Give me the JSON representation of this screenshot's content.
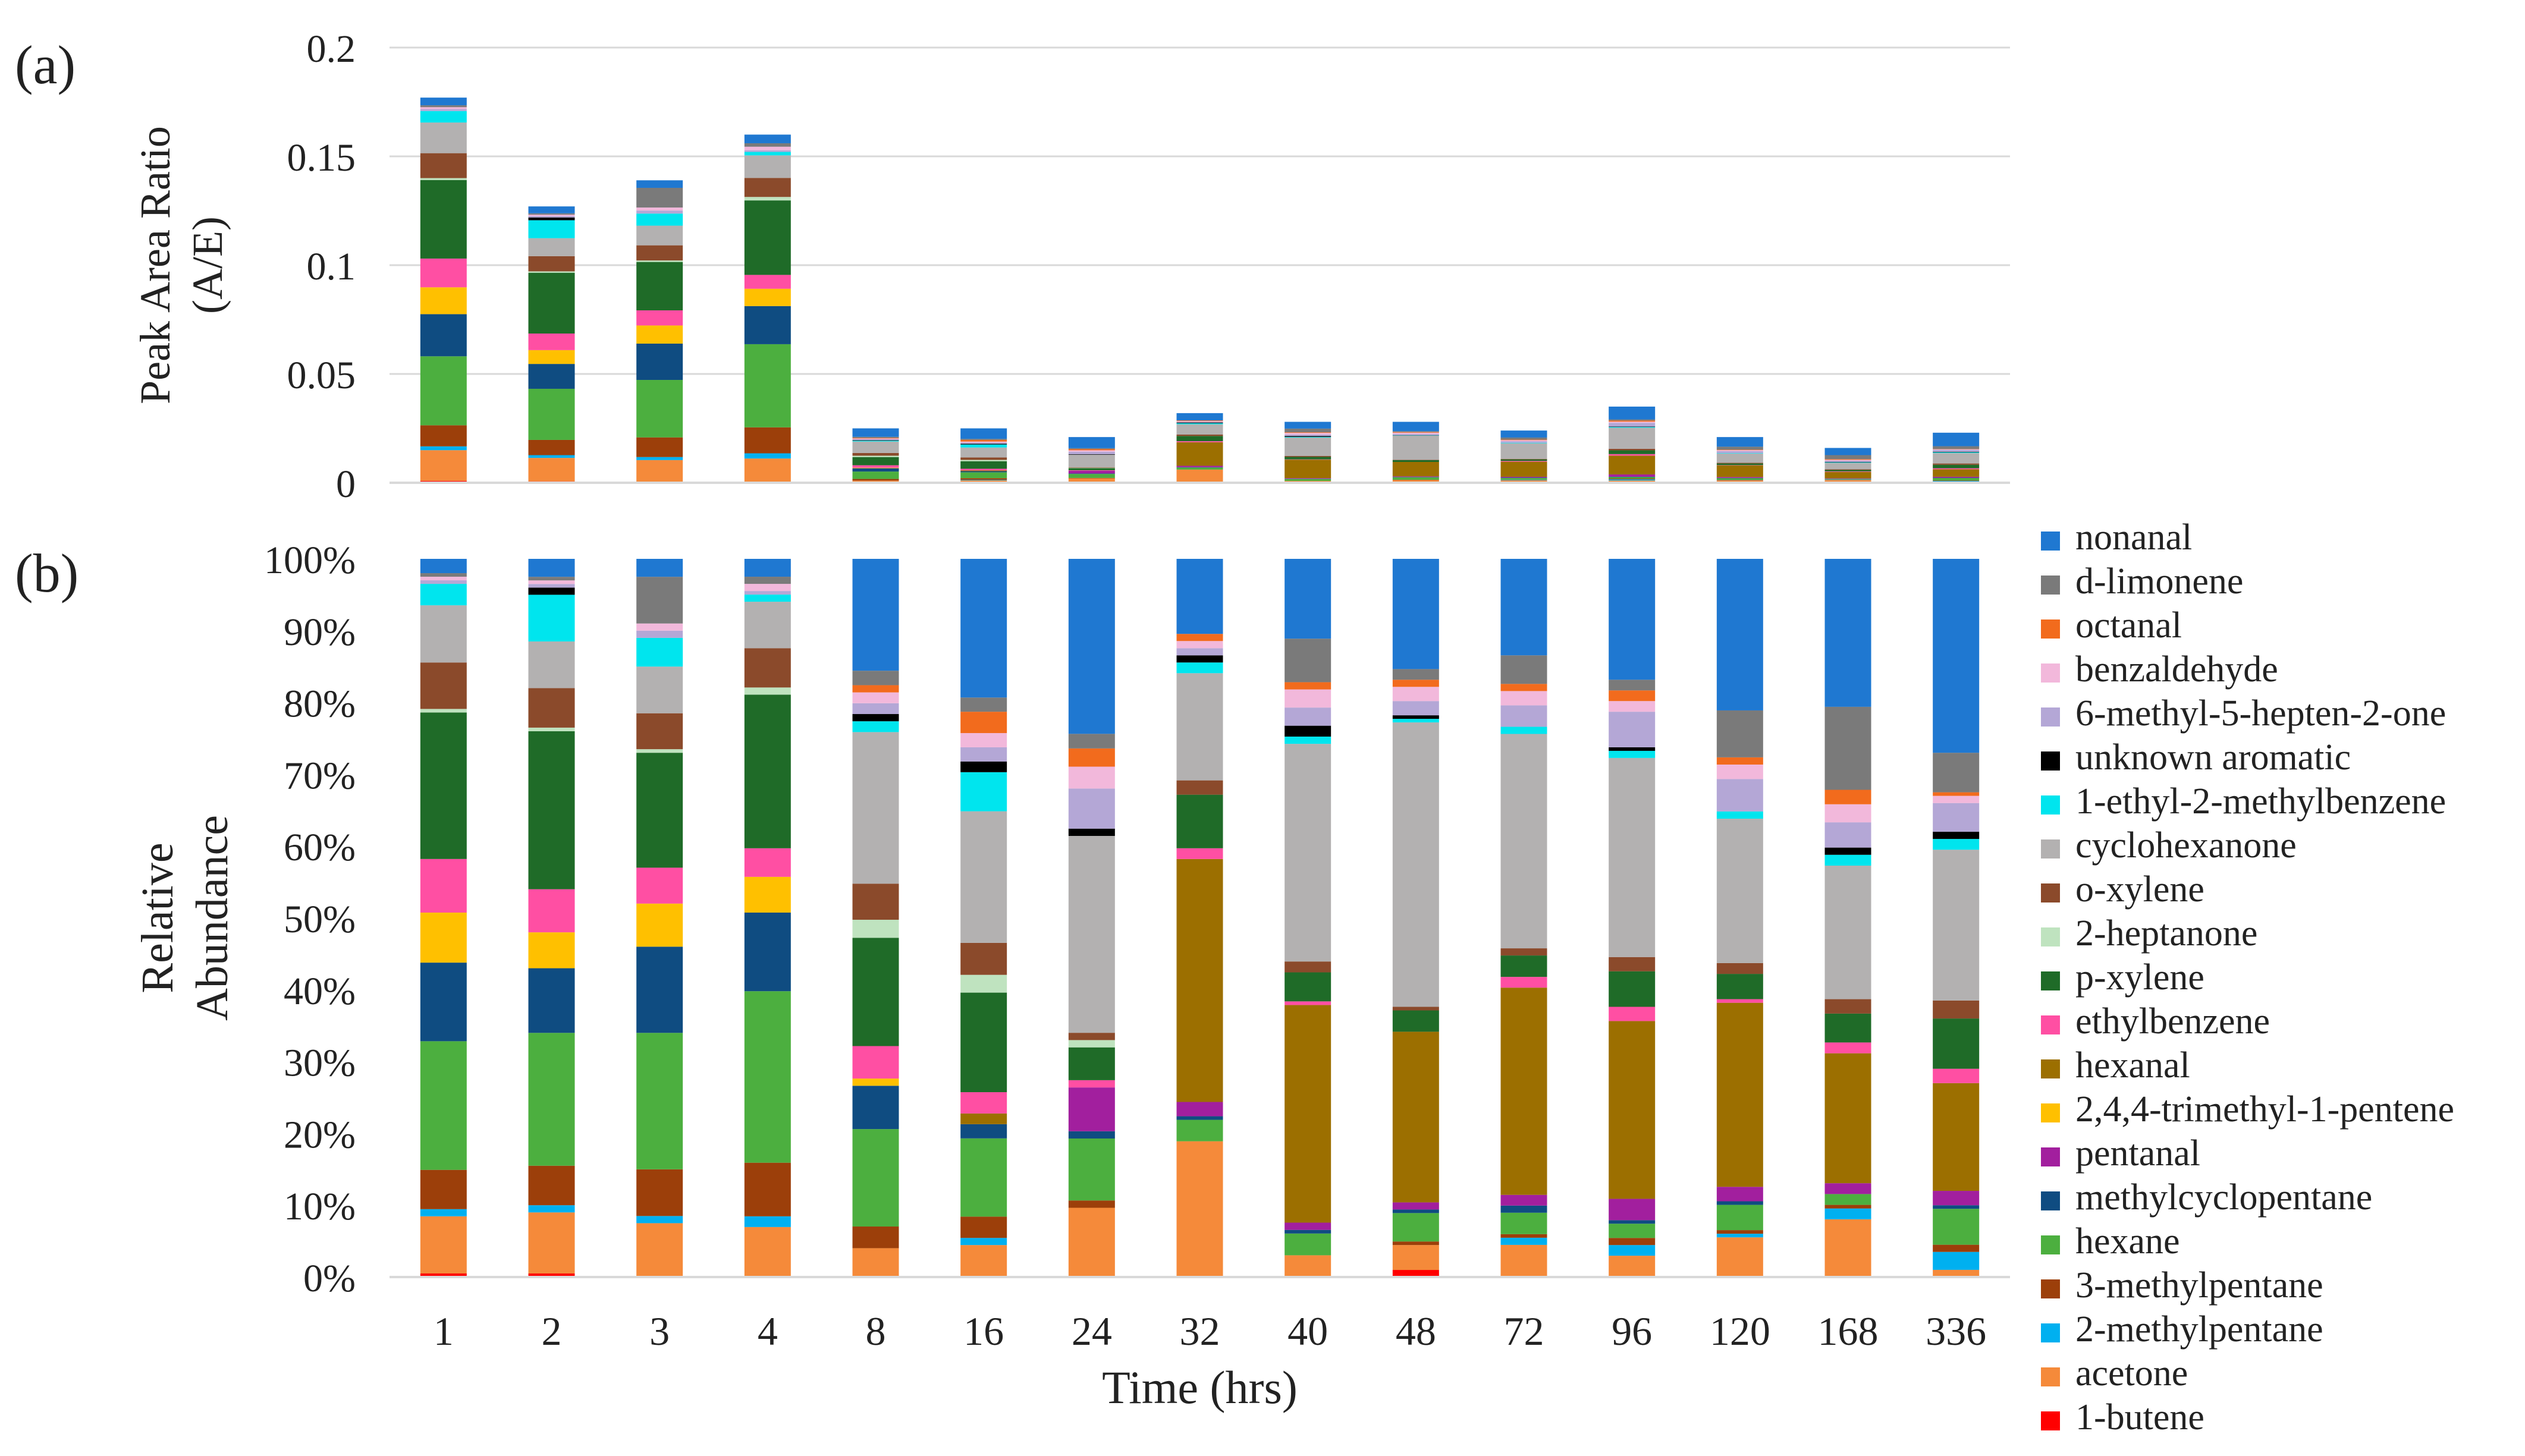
{
  "chart_data": [
    {
      "panel": "(a)",
      "type": "bar",
      "stacked": true,
      "title": "",
      "xlabel": "",
      "ylabel_lines": [
        "Peak Area Ratio",
        "(A/E)"
      ],
      "ylim": [
        0,
        0.2
      ],
      "yticks": [
        0,
        0.05,
        0.1,
        0.15,
        0.2
      ],
      "ytick_labels": [
        "0",
        "0.05",
        "0.1",
        "0.15",
        "0.2"
      ],
      "grid": true,
      "categories": [
        "1",
        "2",
        "3",
        "4",
        "8",
        "16",
        "24",
        "32",
        "40",
        "48",
        "72",
        "96",
        "120",
        "168",
        "336"
      ],
      "totals": [
        0.177,
        0.127,
        0.139,
        0.16,
        0.025,
        0.025,
        0.021,
        0.032,
        0.028,
        0.028,
        0.024,
        0.035,
        0.021,
        0.016,
        0.023
      ]
    },
    {
      "panel": "(b)",
      "type": "bar",
      "stacked": true,
      "percent": true,
      "title": "",
      "xlabel": "Time (hrs)",
      "ylabel_lines": [
        "Relative",
        "Abundance"
      ],
      "ylim": [
        0,
        100
      ],
      "yticks": [
        0,
        10,
        20,
        30,
        40,
        50,
        60,
        70,
        80,
        90,
        100
      ],
      "ytick_labels": [
        "0%",
        "10%",
        "20%",
        "30%",
        "40%",
        "50%",
        "60%",
        "70%",
        "80%",
        "90%",
        "100%"
      ],
      "grid": false,
      "legend": "right",
      "categories": [
        "1",
        "2",
        "3",
        "4",
        "8",
        "16",
        "24",
        "32",
        "40",
        "48",
        "72",
        "96",
        "120",
        "168",
        "336"
      ],
      "series": [
        {
          "name": "1-butene",
          "color": "#ff0000",
          "values": [
            0.5,
            0.5,
            0,
            0,
            0,
            0,
            0,
            0,
            0,
            1,
            0,
            0,
            0,
            0,
            0
          ]
        },
        {
          "name": "acetone",
          "color": "#f58a3a",
          "values": [
            8,
            8.5,
            7.5,
            7,
            4,
            4.5,
            9.5,
            19,
            3,
            3.5,
            4.5,
            3,
            5.5,
            8,
            1
          ]
        },
        {
          "name": "2-methylpentane",
          "color": "#00b0f0",
          "values": [
            1,
            1,
            1,
            1.5,
            0,
            1,
            0,
            0,
            0,
            0,
            1,
            1.5,
            0.5,
            1.5,
            2.5
          ]
        },
        {
          "name": "3-methylpentane",
          "color": "#9c3f0a",
          "values": [
            5.5,
            5.5,
            6.5,
            7.5,
            3,
            3,
            1,
            0,
            0,
            0.5,
            0.5,
            1,
            0.5,
            0.5,
            1
          ]
        },
        {
          "name": "hexane",
          "color": "#4caf3f",
          "values": [
            18,
            18.5,
            19,
            24,
            13.5,
            11,
            8.5,
            3,
            3,
            4,
            3,
            2,
            3.5,
            1.5,
            5
          ]
        },
        {
          "name": "methylcyclopentane",
          "color": "#0f4c81",
          "values": [
            11,
            9,
            12,
            11,
            6,
            2,
            1,
            0.5,
            0.5,
            0.5,
            1,
            0.5,
            0.5,
            0,
            0.5
          ]
        },
        {
          "name": "pentanal",
          "color": "#a21f9e",
          "values": [
            0,
            0,
            0,
            0,
            0,
            0,
            6,
            2,
            1,
            1,
            1.5,
            3,
            2,
            1.5,
            2
          ]
        },
        {
          "name": "2,4,4-trimethyl-1-pentene",
          "color": "#ffc000",
          "values": [
            7,
            5,
            6,
            5,
            1,
            0,
            0,
            0,
            0,
            0,
            0,
            0,
            0,
            0,
            0
          ]
        },
        {
          "name": "hexanal",
          "color": "#9c6f00",
          "values": [
            0,
            0,
            0,
            0,
            0,
            1.5,
            0,
            34,
            30,
            24,
            29,
            25,
            25.5,
            18,
            15
          ]
        },
        {
          "name": "ethylbenzene",
          "color": "#ff4fa3",
          "values": [
            7.5,
            6,
            5,
            4,
            4.5,
            3,
            1,
            1.5,
            0.5,
            0,
            1.5,
            2,
            0.5,
            1.5,
            2
          ]
        },
        {
          "name": "p-xylene",
          "color": "#1f6b28",
          "values": [
            20.5,
            22,
            16,
            21.5,
            15,
            14,
            4.5,
            7.5,
            4,
            3,
            3,
            5,
            3.5,
            4,
            7
          ]
        },
        {
          "name": "2-heptanone",
          "color": "#bfe3bf",
          "values": [
            0.5,
            0.5,
            0.5,
            1,
            2.5,
            2.5,
            1,
            0,
            0,
            0,
            0,
            0,
            0,
            0,
            0
          ]
        },
        {
          "name": "o-xylene",
          "color": "#8b4a2b",
          "values": [
            6.5,
            5.5,
            5,
            5.5,
            5,
            4.5,
            1,
            2,
            1.5,
            0.5,
            1,
            2,
            1.5,
            2,
            2.5
          ]
        },
        {
          "name": "cyclohexanone",
          "color": "#b3b1b1",
          "values": [
            8,
            6.5,
            6.5,
            6.5,
            21,
            18.5,
            27,
            15,
            30,
            40,
            30,
            28,
            20,
            18.5,
            21
          ]
        },
        {
          "name": "1-ethyl-2-methylbenzene",
          "color": "#00e5ee",
          "values": [
            3,
            6.5,
            4,
            1,
            1.5,
            5.5,
            0,
            1.5,
            1,
            0.5,
            1,
            1,
            1,
            1.5,
            1.5
          ]
        },
        {
          "name": "unknown aromatic",
          "color": "#000000",
          "values": [
            0,
            1,
            0,
            0,
            1,
            1.5,
            1,
            1,
            1.5,
            0.5,
            0,
            0.5,
            0,
            1,
            1
          ]
        },
        {
          "name": "6-methyl-5-hepten-2-one",
          "color": "#b4a7d6",
          "values": [
            0.5,
            0.5,
            1,
            0.5,
            1.5,
            2,
            5.5,
            1,
            2.5,
            2,
            3,
            5,
            4.5,
            3.5,
            4
          ]
        },
        {
          "name": "benzaldehyde",
          "color": "#f2b8db",
          "values": [
            0.5,
            0.5,
            1,
            1,
            1.5,
            2,
            3,
            1,
            2.5,
            2,
            2,
            1.5,
            2,
            2.5,
            1
          ]
        },
        {
          "name": "octanal",
          "color": "#f26b1d",
          "values": [
            0,
            0,
            0,
            0,
            1,
            3,
            2.5,
            1,
            1,
            1,
            1,
            1.5,
            1,
            2,
            0.5
          ]
        },
        {
          "name": "d-limonene",
          "color": "#7a7a7a",
          "values": [
            0.5,
            0.5,
            6.5,
            1,
            2,
            2,
            2,
            0,
            6,
            1.5,
            4,
            1.5,
            6.5,
            11.5,
            5.5
          ]
        },
        {
          "name": "nonanal",
          "color": "#1f78d1",
          "values": [
            2,
            2.5,
            2.5,
            2.5,
            15.5,
            19.5,
            24,
            10.5,
            11,
            15.5,
            13.5,
            17,
            21,
            20.5,
            27
          ]
        }
      ]
    }
  ],
  "panel_labels": {
    "a": "(a)",
    "b": "(b)"
  }
}
